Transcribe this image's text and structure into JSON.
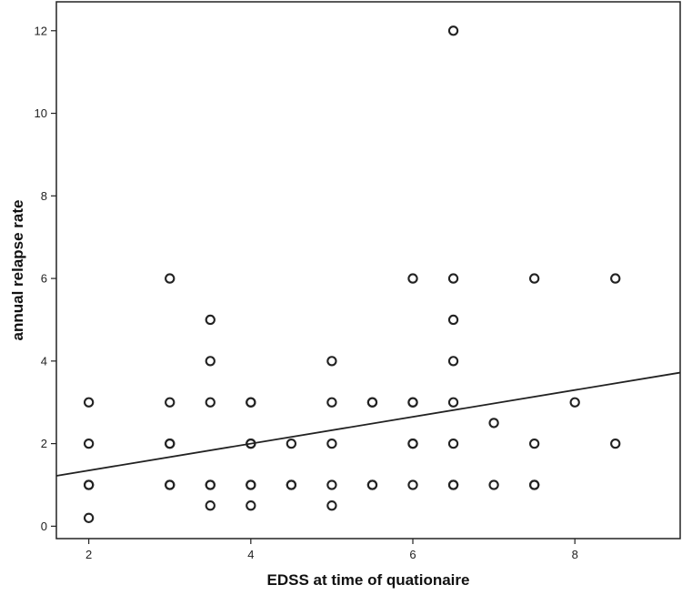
{
  "chart_data": {
    "type": "scatter",
    "xlabel": "EDSS at time of quationaire",
    "ylabel": "annual relapse rate",
    "xlim": [
      1.6,
      9.3
    ],
    "ylim": [
      -0.3,
      12.7
    ],
    "x_ticks": [
      2,
      4,
      6,
      8
    ],
    "y_ticks": [
      0,
      2,
      4,
      6,
      8,
      10,
      12
    ],
    "grid": false,
    "legend": "none",
    "colors": {
      "point": "#222222",
      "line": "#222222"
    },
    "points": [
      {
        "x": 2,
        "y": 3
      },
      {
        "x": 2,
        "y": 2
      },
      {
        "x": 2,
        "y": 1
      },
      {
        "x": 2,
        "y": 1
      },
      {
        "x": 2,
        "y": 0.2
      },
      {
        "x": 3,
        "y": 6
      },
      {
        "x": 3,
        "y": 3
      },
      {
        "x": 3,
        "y": 2
      },
      {
        "x": 3,
        "y": 2
      },
      {
        "x": 3,
        "y": 1
      },
      {
        "x": 3,
        "y": 1
      },
      {
        "x": 3.5,
        "y": 5
      },
      {
        "x": 3.5,
        "y": 4
      },
      {
        "x": 3.5,
        "y": 3
      },
      {
        "x": 3.5,
        "y": 1
      },
      {
        "x": 3.5,
        "y": 1
      },
      {
        "x": 3.5,
        "y": 0.5
      },
      {
        "x": 4,
        "y": 3
      },
      {
        "x": 4,
        "y": 3
      },
      {
        "x": 4,
        "y": 2
      },
      {
        "x": 4,
        "y": 2
      },
      {
        "x": 4,
        "y": 1
      },
      {
        "x": 4,
        "y": 1
      },
      {
        "x": 4,
        "y": 0.5
      },
      {
        "x": 4.5,
        "y": 2
      },
      {
        "x": 4.5,
        "y": 1
      },
      {
        "x": 4.5,
        "y": 1
      },
      {
        "x": 5,
        "y": 4
      },
      {
        "x": 5,
        "y": 3
      },
      {
        "x": 5,
        "y": 2
      },
      {
        "x": 5,
        "y": 1
      },
      {
        "x": 5,
        "y": 0.5
      },
      {
        "x": 5.5,
        "y": 3
      },
      {
        "x": 5.5,
        "y": 3
      },
      {
        "x": 5.5,
        "y": 1
      },
      {
        "x": 5.5,
        "y": 1
      },
      {
        "x": 6,
        "y": 6
      },
      {
        "x": 6,
        "y": 3
      },
      {
        "x": 6,
        "y": 3
      },
      {
        "x": 6,
        "y": 2
      },
      {
        "x": 6,
        "y": 2
      },
      {
        "x": 6,
        "y": 1
      },
      {
        "x": 6.5,
        "y": 12
      },
      {
        "x": 6.5,
        "y": 6
      },
      {
        "x": 6.5,
        "y": 5
      },
      {
        "x": 6.5,
        "y": 4
      },
      {
        "x": 6.5,
        "y": 3
      },
      {
        "x": 6.5,
        "y": 2
      },
      {
        "x": 6.5,
        "y": 1
      },
      {
        "x": 6.5,
        "y": 1
      },
      {
        "x": 7,
        "y": 2.5
      },
      {
        "x": 7,
        "y": 1
      },
      {
        "x": 7.5,
        "y": 6
      },
      {
        "x": 7.5,
        "y": 2
      },
      {
        "x": 7.5,
        "y": 1
      },
      {
        "x": 7.5,
        "y": 1
      },
      {
        "x": 8,
        "y": 3
      },
      {
        "x": 8.5,
        "y": 6
      },
      {
        "x": 8.5,
        "y": 2
      }
    ],
    "fit_line": {
      "x": [
        1.6,
        9.3
      ],
      "y": [
        1.22,
        3.72
      ]
    }
  }
}
